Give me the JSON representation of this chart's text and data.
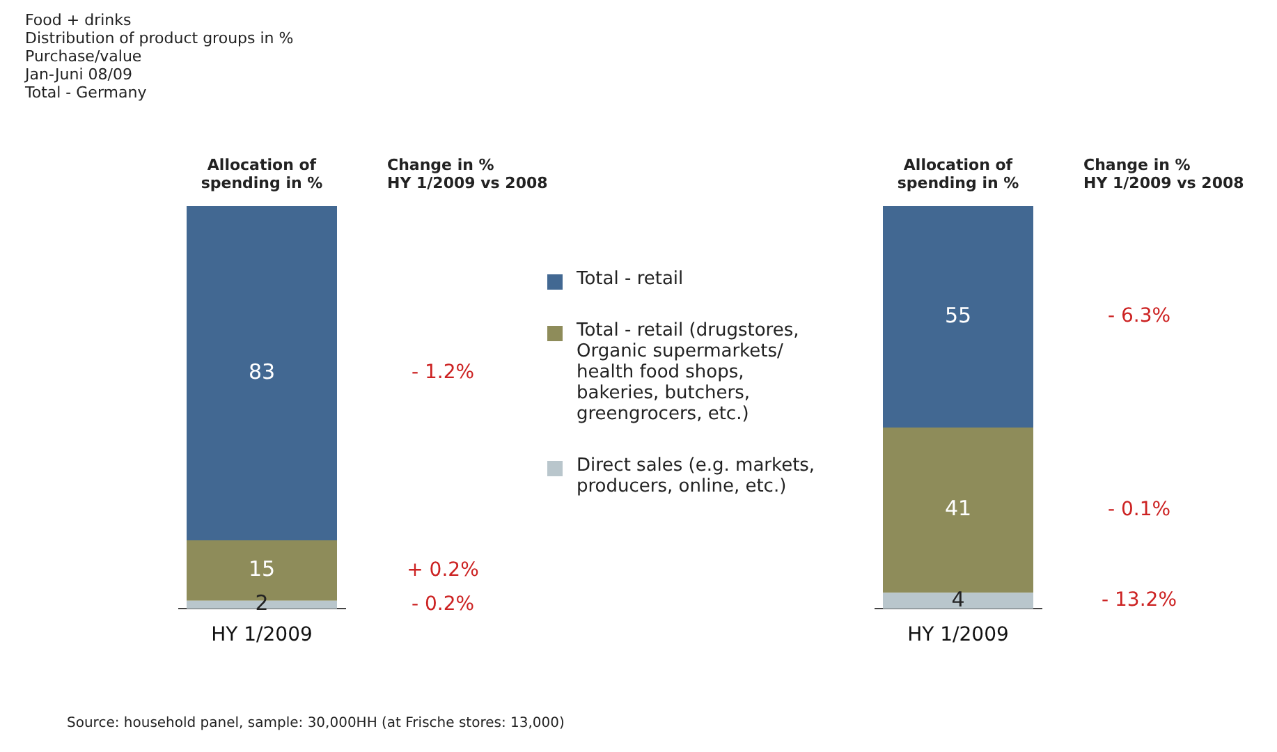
{
  "chart_data": [
    {
      "type": "bar",
      "title": "Food + drinks",
      "subtitle": "Distribution of product groups in %\nPurchase/value\nJan-Juni 08/09\nTotal - Germany",
      "ylabel": "Allocation of spending in %",
      "stacked": true,
      "categories": [
        "HY 1/2009"
      ],
      "legend": "right",
      "data_labels": true,
      "series": [
        {
          "name": "Direct sales (e.g. markets, producers, online, etc.)",
          "color": "#b9c6cc",
          "values": [
            2
          ]
        },
        {
          "name": "Total - retail (drugstores, Organic supermarkets/ health food shops, bakeries, butchers, greengrocers, etc.)",
          "color": "#8e8c5a",
          "values": [
            15
          ]
        },
        {
          "name": "Total - retail",
          "color": "#426892",
          "values": [
            83
          ]
        }
      ],
      "annotations": [
        "Change in %\nHY 1/2009 vs 2008",
        "- 0.2%",
        "+ 0.2%",
        "- 1.2%",
        "Source: household panel, sample: 30,000HH (at Frische stores: 13,000)"
      ]
    },
    {
      "type": "bar",
      "ylabel": "Allocation of spending in %",
      "stacked": true,
      "categories": [
        "HY 1/2009"
      ],
      "data_labels": true,
      "series": [
        {
          "color": "#b9c6cc",
          "values": [
            4
          ]
        },
        {
          "color": "#8e8c5a",
          "values": [
            41
          ]
        },
        {
          "color": "#426892",
          "values": [
            55
          ]
        }
      ],
      "annotations": [
        "Change in %\nHY 1/2009 vs 2008",
        "- 13.2%",
        "- 0.1%",
        "- 6.3%"
      ]
    }
  ]
}
